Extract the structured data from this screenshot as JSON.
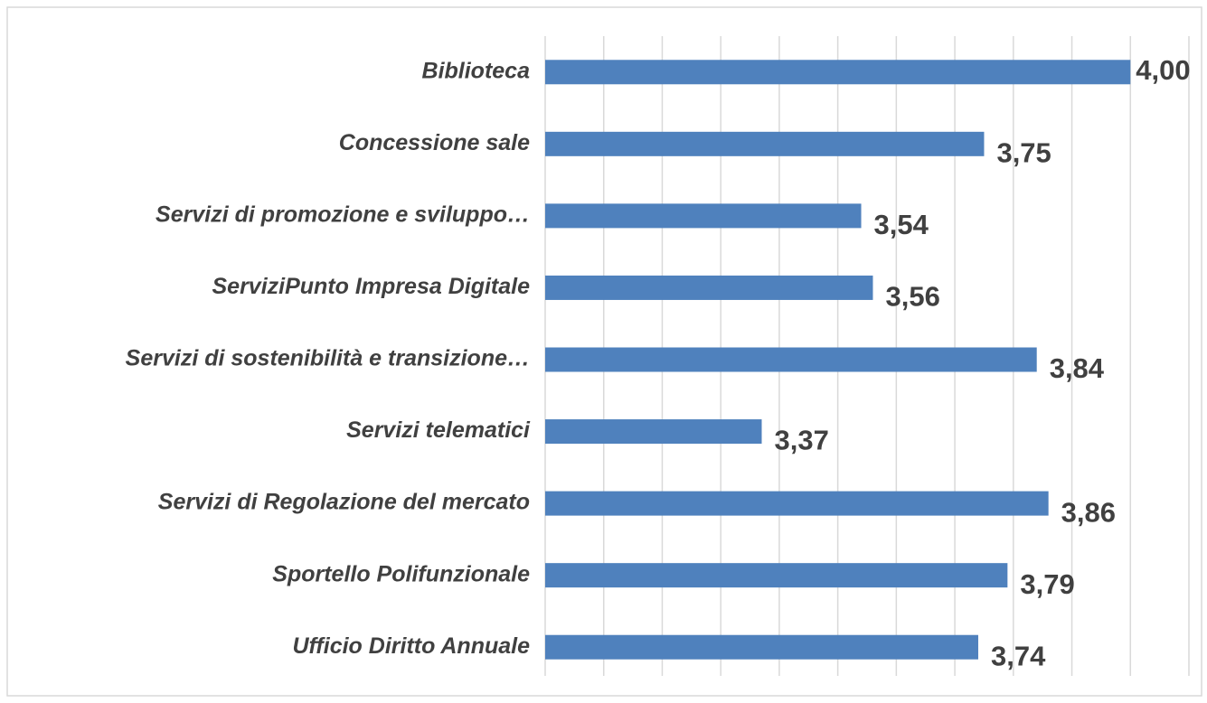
{
  "chart_data": {
    "type": "bar",
    "orientation": "horizontal",
    "categories": [
      "Biblioteca",
      "Concessione sale",
      "Servizi di promozione e sviluppo…",
      "ServiziPunto Impresa Digitale",
      "Servizi di sostenibilità e transizione…",
      "Servizi telematici",
      "Servizi di Regolazione del mercato",
      "Sportello Polifunzionale",
      "Ufficio Diritto Annuale"
    ],
    "values": [
      4.0,
      3.75,
      3.54,
      3.56,
      3.84,
      3.37,
      3.86,
      3.79,
      3.74
    ],
    "value_labels": [
      "4,00",
      "3,75",
      "3,54",
      "3,56",
      "3,84",
      "3,37",
      "3,86",
      "3,79",
      "3,74"
    ],
    "color": "#4f81bd",
    "xlim": [
      3.0,
      4.1
    ],
    "xticks": [
      3.0,
      3.1,
      3.2,
      3.3,
      3.4,
      3.5,
      3.6,
      3.7,
      3.8,
      3.9,
      4.0,
      4.1
    ],
    "grid": true
  }
}
